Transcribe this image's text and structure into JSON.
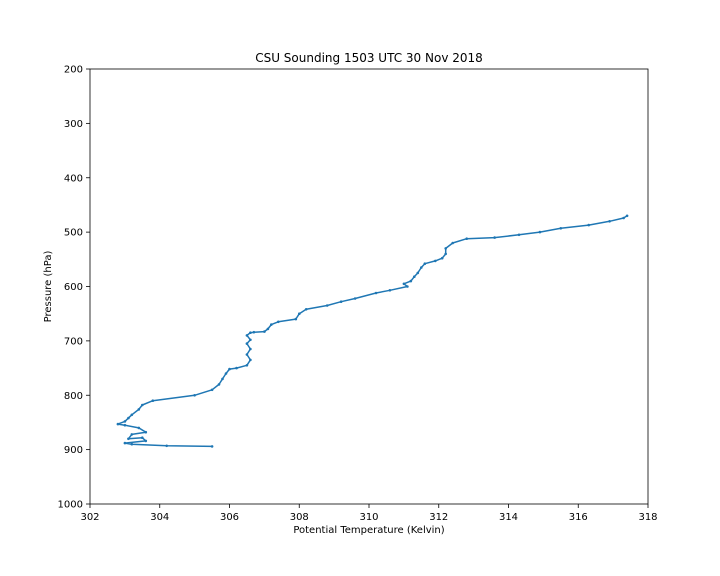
{
  "chart_data": {
    "type": "line",
    "title": "CSU Sounding 1503 UTC 30 Nov 2018",
    "xlabel": "Potential Temperature (Kelvin)",
    "ylabel": "Pressure (hPa)",
    "xlim": [
      302,
      318
    ],
    "ylim": [
      200,
      1000
    ],
    "y_inverted": true,
    "xticks": [
      "302",
      "304",
      "306",
      "308",
      "310",
      "312",
      "314",
      "316",
      "318"
    ],
    "yticks": [
      "200",
      "300",
      "400",
      "500",
      "600",
      "700",
      "800",
      "900",
      "1000"
    ],
    "grid": false,
    "line_color": "#1f77b4",
    "series": [
      {
        "x": [
          305.5,
          304.2,
          303.2,
          303.0,
          303.6,
          303.5,
          303.1,
          303.2,
          303.6,
          303.4,
          303.0,
          302.8,
          303.0,
          303.1,
          303.2,
          303.4,
          303.5,
          303.8,
          305.0,
          305.5,
          305.7,
          305.8,
          305.9,
          306.0,
          306.2,
          306.5,
          306.6,
          306.5,
          306.6,
          306.5,
          306.6,
          306.5,
          306.6,
          306.7,
          307.0,
          307.1,
          307.2,
          307.4,
          307.9,
          308.0,
          308.2,
          308.8,
          309.2,
          309.6,
          310.2,
          310.6,
          311.1,
          311.0,
          311.2,
          311.3,
          311.4,
          311.5,
          311.6,
          311.9,
          312.1,
          312.2,
          312.2,
          312.4,
          312.8,
          313.6,
          314.3,
          314.9,
          315.5,
          316.3,
          316.9,
          317.3,
          317.4
        ],
        "y": [
          894,
          893,
          890,
          888,
          884,
          878,
          880,
          872,
          868,
          860,
          855,
          853,
          848,
          842,
          836,
          826,
          818,
          810,
          800,
          790,
          780,
          770,
          760,
          752,
          750,
          745,
          735,
          725,
          715,
          705,
          698,
          690,
          685,
          684,
          683,
          678,
          670,
          665,
          660,
          650,
          642,
          635,
          628,
          622,
          612,
          607,
          600,
          595,
          590,
          582,
          575,
          565,
          558,
          553,
          548,
          540,
          530,
          520,
          512,
          510,
          505,
          500,
          493,
          487,
          480,
          474,
          470
        ]
      }
    ]
  }
}
